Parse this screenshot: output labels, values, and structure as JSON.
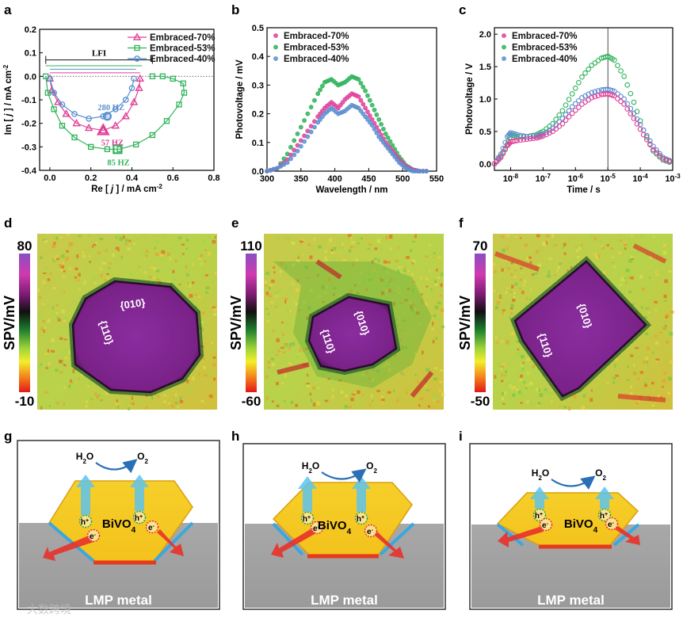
{
  "panel_letters": [
    "a",
    "b",
    "c",
    "d",
    "e",
    "f",
    "g",
    "h",
    "i"
  ],
  "colors": {
    "c70": "#e0409a",
    "c53": "#2fb35a",
    "c40": "#5b8fd0"
  },
  "chart_data": [
    {
      "id": "a",
      "type": "scatter",
      "xlabel_pre": "Re [ ",
      "xlabel_j": "j",
      "xlabel_post": " ] / mA cm",
      "xlabel_exp": "-2",
      "ylabel_pre": "Im [ ",
      "ylabel_j": "j",
      "ylabel_post": " ] / mA cm",
      "ylabel_exp": "-2",
      "xlim": [
        -0.05,
        0.8
      ],
      "ylim": [
        -0.4,
        0.2
      ],
      "xticks": [
        "0.0",
        "0.2",
        "0.4",
        "0.6",
        "0.8"
      ],
      "yticks": [
        "0.2",
        "0.1",
        "0.0",
        "-0.1",
        "-0.2",
        "-0.3",
        "-0.4"
      ],
      "annotations": [
        "LFI",
        "280 HZ",
        "57 HZ",
        "85 HZ"
      ],
      "series": [
        {
          "name": "Embraced-70%",
          "marker": "triangle",
          "points": [
            [
              0.0,
              -0.01
            ],
            [
              0.01,
              -0.06
            ],
            [
              0.04,
              -0.11
            ],
            [
              0.08,
              -0.16
            ],
            [
              0.13,
              -0.2
            ],
            [
              0.19,
              -0.22
            ],
            [
              0.26,
              -0.23
            ],
            [
              0.32,
              -0.21
            ],
            [
              0.37,
              -0.17
            ],
            [
              0.41,
              -0.11
            ],
            [
              0.435,
              -0.05
            ],
            [
              0.44,
              -0.01
            ]
          ]
        },
        {
          "name": "Embraced-53%",
          "marker": "square",
          "points": [
            [
              -0.02,
              0.0
            ],
            [
              -0.01,
              -0.07
            ],
            [
              0.02,
              -0.14
            ],
            [
              0.06,
              -0.21
            ],
            [
              0.12,
              -0.26
            ],
            [
              0.2,
              -0.3
            ],
            [
              0.28,
              -0.31
            ],
            [
              0.34,
              -0.31
            ],
            [
              0.42,
              -0.29
            ],
            [
              0.5,
              -0.25
            ],
            [
              0.57,
              -0.19
            ],
            [
              0.63,
              -0.12
            ],
            [
              0.655,
              -0.07
            ],
            [
              0.65,
              -0.03
            ],
            [
              0.6,
              -0.01
            ],
            [
              0.55,
              0.0
            ],
            [
              0.5,
              0.0
            ]
          ]
        },
        {
          "name": "Embraced-40%",
          "marker": "circle",
          "points": [
            [
              0.0,
              -0.01
            ],
            [
              0.02,
              -0.07
            ],
            [
              0.06,
              -0.12
            ],
            [
              0.12,
              -0.16
            ],
            [
              0.19,
              -0.18
            ],
            [
              0.26,
              -0.17
            ],
            [
              0.32,
              -0.14
            ],
            [
              0.37,
              -0.1
            ],
            [
              0.4,
              -0.05
            ],
            [
              0.41,
              -0.01
            ]
          ]
        }
      ]
    },
    {
      "id": "b",
      "type": "scatter",
      "xlabel": "Wavelength / nm",
      "ylabel": "Photovoltage / mV",
      "xlim": [
        300,
        550
      ],
      "ylim": [
        0.0,
        0.5
      ],
      "xticks": [
        "300",
        "350",
        "400",
        "450",
        "500",
        "550"
      ],
      "yticks": [
        "0.0",
        "0.1",
        "0.2",
        "0.3",
        "0.4",
        "0.5"
      ],
      "series": [
        {
          "name": "Embraced-70%",
          "x": [
            300,
            315,
            330,
            345,
            360,
            375,
            385,
            395,
            405,
            415,
            425,
            435,
            445,
            455,
            465,
            475,
            485,
            495,
            505,
            515,
            525,
            540
          ],
          "y": [
            0.0,
            0.01,
            0.04,
            0.09,
            0.14,
            0.19,
            0.22,
            0.24,
            0.22,
            0.25,
            0.27,
            0.26,
            0.22,
            0.18,
            0.14,
            0.1,
            0.07,
            0.04,
            0.015,
            0.005,
            0.0,
            0.0
          ]
        },
        {
          "name": "Embraced-53%",
          "x": [
            300,
            315,
            330,
            345,
            360,
            375,
            385,
            395,
            405,
            415,
            425,
            435,
            445,
            455,
            465,
            475,
            485,
            495,
            505,
            515,
            525,
            540
          ],
          "y": [
            0.0,
            0.01,
            0.06,
            0.13,
            0.2,
            0.27,
            0.31,
            0.32,
            0.3,
            0.31,
            0.33,
            0.32,
            0.28,
            0.23,
            0.18,
            0.13,
            0.09,
            0.05,
            0.02,
            0.005,
            0.0,
            0.0
          ]
        },
        {
          "name": "Embraced-40%",
          "x": [
            300,
            315,
            330,
            345,
            360,
            375,
            385,
            395,
            405,
            415,
            425,
            435,
            445,
            455,
            465,
            475,
            485,
            495,
            505,
            515,
            525,
            540
          ],
          "y": [
            0.0,
            0.01,
            0.03,
            0.07,
            0.12,
            0.17,
            0.2,
            0.22,
            0.2,
            0.21,
            0.23,
            0.22,
            0.19,
            0.16,
            0.12,
            0.09,
            0.06,
            0.03,
            0.01,
            0.0,
            0.0,
            0.0
          ]
        }
      ]
    },
    {
      "id": "c",
      "type": "scatter",
      "xlabel": "Time / s",
      "ylabel": "Photovoltage / V",
      "xlim_log10": [
        -8.5,
        -3
      ],
      "ylim": [
        -0.1,
        2.1
      ],
      "xticks": [
        {
          "base": "10",
          "exp": "-8",
          "v": -8
        },
        {
          "base": "10",
          "exp": "-7",
          "v": -7
        },
        {
          "base": "10",
          "exp": "-6",
          "v": -6
        },
        {
          "base": "10",
          "exp": "-5",
          "v": -5
        },
        {
          "base": "10",
          "exp": "-4",
          "v": -4
        },
        {
          "base": "10",
          "exp": "-3",
          "v": -3
        }
      ],
      "yticks": [
        "0.0",
        "0.5",
        "1.0",
        "1.5",
        "2.0"
      ],
      "vline_log10": -5,
      "series": [
        {
          "name": "Embraced-70%",
          "x": [
            -8.5,
            -8.3,
            -8.1,
            -8.0,
            -7.8,
            -7.5,
            -7.2,
            -7.0,
            -6.7,
            -6.4,
            -6.1,
            -5.8,
            -5.5,
            -5.2,
            -5.0,
            -4.8,
            -4.5,
            -4.2,
            -3.9,
            -3.6,
            -3.3,
            -3.0
          ],
          "y": [
            0.0,
            0.1,
            0.28,
            0.34,
            0.36,
            0.38,
            0.4,
            0.43,
            0.5,
            0.62,
            0.78,
            0.92,
            1.02,
            1.07,
            1.08,
            1.05,
            0.92,
            0.7,
            0.45,
            0.22,
            0.08,
            0.02
          ]
        },
        {
          "name": "Embraced-53%",
          "x": [
            -8.5,
            -8.3,
            -8.1,
            -8.0,
            -7.8,
            -7.5,
            -7.2,
            -7.0,
            -6.7,
            -6.4,
            -6.1,
            -5.8,
            -5.5,
            -5.2,
            -5.0,
            -4.8,
            -4.5,
            -4.2,
            -3.9,
            -3.6,
            -3.3,
            -3.0
          ],
          "y": [
            0.0,
            0.12,
            0.3,
            0.45,
            0.42,
            0.42,
            0.45,
            0.5,
            0.62,
            0.82,
            1.08,
            1.34,
            1.52,
            1.63,
            1.66,
            1.6,
            1.35,
            0.95,
            0.52,
            0.2,
            0.06,
            0.01
          ]
        },
        {
          "name": "Embraced-40%",
          "x": [
            -8.5,
            -8.3,
            -8.1,
            -8.0,
            -7.8,
            -7.5,
            -7.2,
            -7.0,
            -6.7,
            -6.4,
            -6.1,
            -5.8,
            -5.5,
            -5.2,
            -5.0,
            -4.8,
            -4.5,
            -4.2,
            -3.9,
            -3.6,
            -3.3,
            -3.0
          ],
          "y": [
            0.0,
            0.15,
            0.42,
            0.48,
            0.45,
            0.42,
            0.43,
            0.46,
            0.55,
            0.7,
            0.88,
            1.02,
            1.1,
            1.14,
            1.15,
            1.12,
            1.0,
            0.78,
            0.52,
            0.27,
            0.1,
            0.03
          ]
        }
      ]
    }
  ],
  "spv_panels": [
    {
      "id": "d",
      "cbar_label": "SPV/mV",
      "max": "80",
      "min": "-10",
      "facet_a": "{010}",
      "facet_b": "{110}"
    },
    {
      "id": "e",
      "cbar_label": "SPV/mV",
      "max": "110",
      "min": "-60",
      "facet_a": "{010}",
      "facet_b": "{110}"
    },
    {
      "id": "f",
      "cbar_label": "SPV/mV",
      "max": "70",
      "min": "-50",
      "facet_a": "{010}",
      "facet_b": "{110}"
    }
  ],
  "schematics": [
    {
      "id": "g",
      "crystal": "BiVO",
      "crystal_sub": "4",
      "water": "H",
      "water_sub": "2",
      "water_tail": "O",
      "oxygen": "O",
      "oxygen_sub": "2",
      "hole": "h",
      "hole_sup": "+",
      "electron": "e",
      "electron_sup": "-",
      "metal": "LMP metal"
    },
    {
      "id": "h",
      "crystal": "BiVO",
      "crystal_sub": "4",
      "water": "H",
      "water_sub": "2",
      "water_tail": "O",
      "oxygen": "O",
      "oxygen_sub": "2",
      "hole": "h",
      "hole_sup": "+",
      "electron": "e",
      "electron_sup": "-",
      "metal": "LMP metal"
    },
    {
      "id": "i",
      "crystal": "BiVO",
      "crystal_sub": "4",
      "water": "H",
      "water_sub": "2",
      "water_tail": "O",
      "oxygen": "O",
      "oxygen_sub": "2",
      "hole": "h",
      "hole_sup": "+",
      "electron": "e",
      "electron_sup": "-",
      "metal": "LMP metal"
    }
  ],
  "watermark": "大数跨境"
}
